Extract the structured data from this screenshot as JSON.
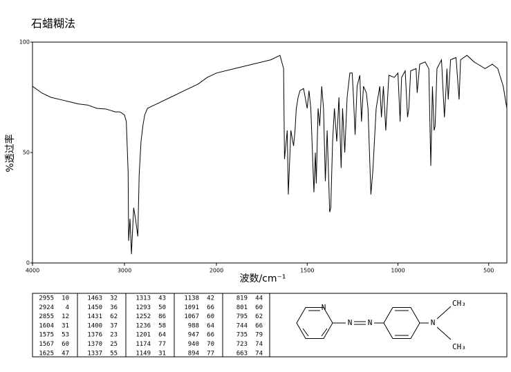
{
  "chart_data": {
    "type": "line",
    "title": "石蜡糊法",
    "x_label": "波数/cm⁻¹",
    "y_label": "%透过率",
    "xlim": [
      4000,
      400
    ],
    "x_scale_break": 2000,
    "xticks": [
      4000,
      3000,
      2000,
      1500,
      1000,
      500
    ],
    "ylim": [
      0,
      100
    ],
    "yticks": [
      0,
      50,
      100
    ],
    "series": [
      {
        "name": "spectrum",
        "color": "#000000",
        "x": [
          4000,
          3900,
          3800,
          3700,
          3600,
          3500,
          3400,
          3300,
          3200,
          3100,
          3050,
          3000,
          2980,
          2960,
          2955,
          2940,
          2924,
          2900,
          2880,
          2855,
          2840,
          2820,
          2800,
          2780,
          2750,
          2700,
          2600,
          2500,
          2400,
          2300,
          2200,
          2100,
          2000,
          1900,
          1800,
          1700,
          1650,
          1630,
          1625,
          1610,
          1604,
          1590,
          1575,
          1567,
          1560,
          1550,
          1540,
          1520,
          1500,
          1490,
          1480,
          1463,
          1455,
          1450,
          1440,
          1431,
          1420,
          1410,
          1400,
          1390,
          1376,
          1370,
          1360,
          1350,
          1337,
          1325,
          1313,
          1305,
          1293,
          1280,
          1265,
          1252,
          1245,
          1236,
          1225,
          1210,
          1201,
          1190,
          1174,
          1165,
          1149,
          1138,
          1120,
          1100,
          1091,
          1080,
          1067,
          1050,
          1020,
          1000,
          988,
          980,
          960,
          947,
          940,
          930,
          900,
          894,
          880,
          850,
          830,
          819,
          810,
          801,
          795,
          785,
          760,
          744,
          735,
          730,
          723,
          710,
          680,
          663,
          655,
          620,
          580,
          560,
          520,
          500,
          480,
          450,
          420,
          400
        ],
        "values": [
          80,
          77,
          75,
          74,
          73,
          72,
          71.5,
          70,
          69.7,
          68.4,
          68.4,
          67,
          64,
          41,
          10,
          20,
          4,
          25,
          20,
          12,
          40,
          55,
          62,
          67,
          70,
          71,
          73,
          75,
          77,
          79,
          81,
          84,
          86,
          88,
          90,
          92,
          94,
          88,
          47,
          60,
          31,
          60,
          53,
          60,
          70,
          75,
          78,
          79,
          70,
          78,
          70,
          32,
          50,
          36,
          70,
          62,
          80,
          70,
          37,
          60,
          23,
          25,
          55,
          70,
          55,
          75,
          43,
          70,
          50,
          75,
          86,
          86,
          75,
          58,
          80,
          85,
          64,
          80,
          77,
          70,
          31,
          42,
          70,
          80,
          66,
          80,
          60,
          85,
          84,
          86,
          64,
          84,
          87,
          66,
          70,
          87,
          88,
          77,
          90,
          91,
          88,
          44,
          80,
          60,
          62,
          88,
          92,
          66,
          79,
          88,
          74,
          92,
          93,
          74,
          92,
          94,
          91,
          90,
          88,
          89,
          90,
          88,
          80,
          70
        ]
      }
    ]
  },
  "peak_table": {
    "columns": [
      [
        [
          2955,
          10
        ],
        [
          2924,
          4
        ],
        [
          2855,
          12
        ],
        [
          1604,
          31
        ],
        [
          1575,
          53
        ],
        [
          1567,
          60
        ],
        [
          1625,
          47
        ]
      ],
      [
        [
          1463,
          32
        ],
        [
          1450,
          36
        ],
        [
          1431,
          62
        ],
        [
          1400,
          37
        ],
        [
          1376,
          23
        ],
        [
          1370,
          25
        ],
        [
          1337,
          55
        ]
      ],
      [
        [
          1313,
          43
        ],
        [
          1293,
          50
        ],
        [
          1252,
          86
        ],
        [
          1236,
          58
        ],
        [
          1201,
          64
        ],
        [
          1174,
          77
        ],
        [
          1149,
          31
        ]
      ],
      [
        [
          1138,
          42
        ],
        [
          1091,
          66
        ],
        [
          1067,
          60
        ],
        [
          988,
          64
        ],
        [
          947,
          66
        ],
        [
          940,
          70
        ],
        [
          894,
          77
        ]
      ],
      [
        [
          819,
          44
        ],
        [
          801,
          60
        ],
        [
          795,
          62
        ],
        [
          744,
          66
        ],
        [
          735,
          79
        ],
        [
          723,
          74
        ],
        [
          663,
          74
        ]
      ]
    ]
  },
  "structure": {
    "atoms": [
      "N",
      "N",
      "N",
      "N",
      "CH₃",
      "CH₃"
    ]
  }
}
